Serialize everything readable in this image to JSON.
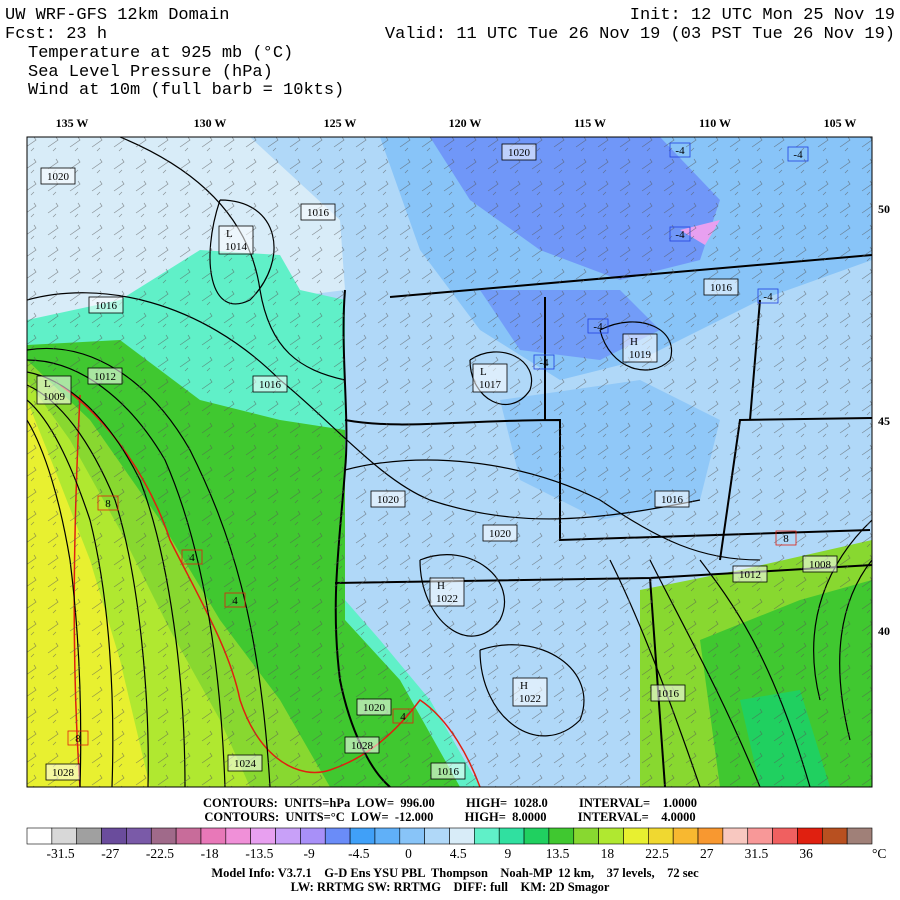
{
  "header": {
    "title": "UW WRF-GFS 12km Domain",
    "init": "Init: 12 UTC Mon 25 Nov 19",
    "forecast": "Fcst:   23 h",
    "valid": "Valid: 11 UTC Tue 26 Nov 19 (03 PST Tue 26 Nov 19)",
    "fields": [
      "Temperature at 925 mb (°C)",
      "Sea Level Pressure (hPa)",
      "Wind at 10m (full barb = 10kts)"
    ]
  },
  "map": {
    "longitude_labels": [
      "135 W",
      "130 W",
      "125 W",
      "120 W",
      "115 W",
      "110 W",
      "105 W"
    ],
    "latitude_labels": [
      "50",
      "45",
      "40"
    ],
    "pressure_labels": [
      {
        "text": "1020"
      },
      {
        "text": "1020"
      },
      {
        "text": "1016"
      },
      {
        "letter": "L",
        "text": "1014"
      },
      {
        "text": "1016"
      },
      {
        "text": "1012"
      },
      {
        "letter": "L",
        "text": "1009"
      },
      {
        "text": "1016"
      },
      {
        "letter": "L",
        "text": "1017"
      },
      {
        "letter": "H",
        "text": "1019"
      },
      {
        "text": "1016"
      },
      {
        "text": "1020"
      },
      {
        "text": "1020"
      },
      {
        "text": "1016"
      },
      {
        "text": "1012"
      },
      {
        "text": "1008"
      },
      {
        "letter": "H",
        "text": "1022"
      },
      {
        "letter": "H",
        "text": "1022"
      },
      {
        "text": "1016"
      },
      {
        "text": "1020"
      },
      {
        "text": "1024"
      },
      {
        "text": "1028"
      },
      {
        "text": "1028"
      },
      {
        "text": "1016"
      }
    ],
    "temperature_labels": [
      "-4",
      "-4",
      "-4",
      "-4",
      "-4",
      "-4",
      "8",
      "4",
      "4",
      "8",
      "4",
      "8"
    ]
  },
  "footer": {
    "contours": [
      "CONTOURS:  UNITS=hPa  LOW=  996.00          HIGH=  1028.0          INTERVAL=    1.0000",
      "CONTOURS:  UNITS=°C  LOW=  -12.000          HIGH=  8.0000          INTERVAL=    4.0000"
    ],
    "model_info": [
      "Model Info: V3.7.1    G-D Ens YSU PBL  Thompson    Noah-MP  12 km,    37 levels,    72 sec",
      "LW: RRTMG SW: RRTMG    DIFF: full    KM: 2D Smagor"
    ]
  },
  "colorbar": {
    "labels": [
      "-31.5",
      "-27",
      "-22.5",
      "-18",
      "-13.5",
      "-9",
      "-4.5",
      "0",
      "4.5",
      "9",
      "13.5",
      "18",
      "22.5",
      "27",
      "31.5",
      "36"
    ],
    "unit": "°C",
    "colors": [
      "#ffffff",
      "#d8d8d8",
      "#a0a0a0",
      "#6a4c9c",
      "#7a5aa8",
      "#a06a8a",
      "#c86c9a",
      "#e878b8",
      "#f090d8",
      "#e8a0f0",
      "#c8a0f8",
      "#a890f8",
      "#6a8cf8",
      "#40a0f8",
      "#60b0f8",
      "#88c4f8",
      "#b0d8f8",
      "#d8ecf8",
      "#60f0c8",
      "#30e0a0",
      "#20d060",
      "#40c830",
      "#88d830",
      "#b0e830",
      "#e8f030",
      "#f0d830",
      "#f8b830",
      "#f89830",
      "#f8c8c0",
      "#f89898",
      "#f06060",
      "#e02010",
      "#b85020",
      "#a08078"
    ]
  }
}
